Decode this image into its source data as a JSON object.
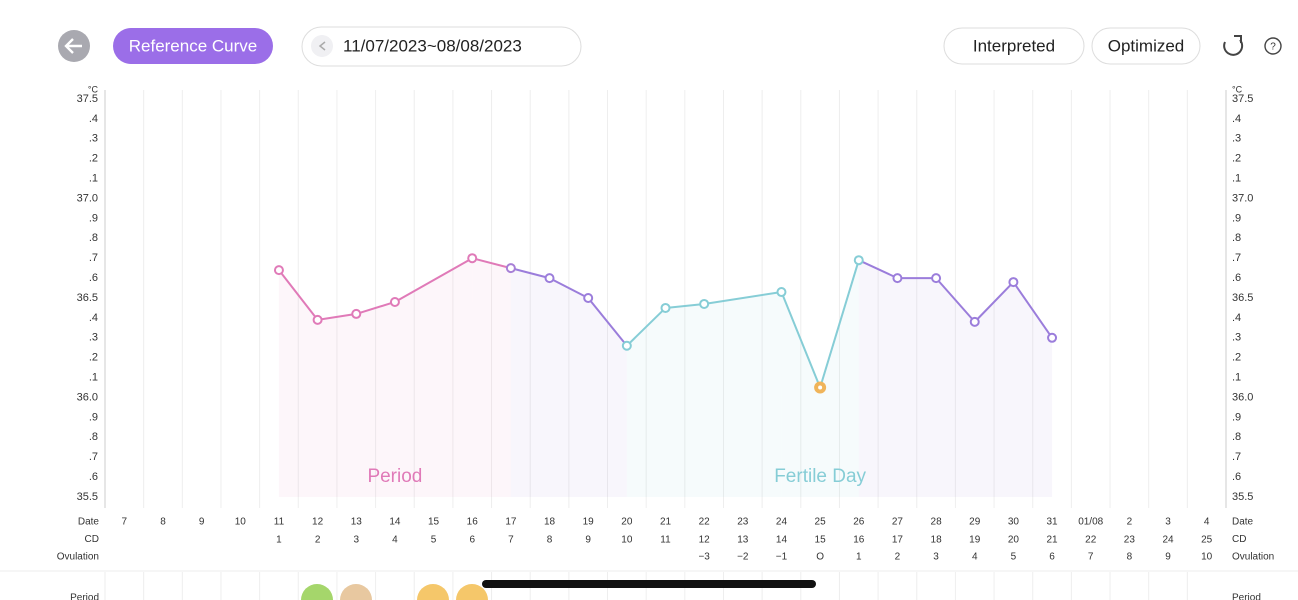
{
  "header": {
    "button": "Reference Curve",
    "date_range": "11/07/2023~08/08/2023",
    "tabs": [
      "Interpreted",
      "Optimized"
    ]
  },
  "chart_data": {
    "type": "line",
    "y_unit": "°C",
    "ylim": [
      35.5,
      37.5
    ],
    "yticks": [
      35.5,
      {
        "value": 35.6,
        "label": ".6"
      },
      {
        "value": 35.7,
        "label": ".7"
      },
      {
        "value": 35.8,
        "label": ".8"
      },
      {
        "value": 35.9,
        "label": ".9"
      },
      {
        "value": 36,
        "label": "36.0"
      },
      {
        "value": 36.1,
        "label": ".1"
      },
      {
        "value": 36.2,
        "label": ".2"
      },
      {
        "value": 36.3,
        "label": ".3"
      },
      {
        "value": 36.4,
        "label": ".4"
      },
      36.5,
      {
        "value": 36.6,
        "label": ".6"
      },
      {
        "value": 36.7,
        "label": ".7"
      },
      {
        "value": 36.8,
        "label": ".8"
      },
      {
        "value": 36.9,
        "label": ".9"
      },
      {
        "value": 37,
        "label": "37.0"
      },
      {
        "value": 37.1,
        "label": ".1"
      },
      {
        "value": 37.2,
        "label": ".2"
      },
      {
        "value": 37.3,
        "label": ".3"
      },
      {
        "value": 37.4,
        "label": ".4"
      },
      37.5
    ],
    "grid": false,
    "vertical_grid": true,
    "categories": [
      "7",
      "8",
      "9",
      "10",
      "11",
      "12",
      "13",
      "14",
      "15",
      "16",
      "17",
      "18",
      "19",
      "20",
      "21",
      "22",
      "23",
      "24",
      "25",
      "26",
      "27",
      "28",
      "29",
      "30",
      "31",
      "01/08",
      "2",
      "3",
      "4"
    ],
    "row_labels": [
      "Date",
      "CD",
      "Ovulation"
    ],
    "cd": [
      null,
      null,
      null,
      null,
      1,
      2,
      3,
      4,
      5,
      6,
      7,
      8,
      9,
      10,
      11,
      12,
      13,
      14,
      15,
      16,
      17,
      18,
      19,
      20,
      21,
      22,
      23,
      24,
      25
    ],
    "ovulation": [
      null,
      null,
      null,
      null,
      null,
      null,
      null,
      null,
      null,
      null,
      null,
      null,
      null,
      null,
      null,
      "−3",
      "−2",
      "−1",
      "O",
      "1",
      "2",
      "3",
      "4",
      "5",
      "6",
      "7",
      "8",
      "9",
      "10"
    ],
    "series": {
      "x": [
        "11",
        "12",
        "13",
        "14",
        "16",
        "17",
        "18",
        "19",
        "20",
        "21",
        "22",
        "24",
        "25",
        "26",
        "27",
        "28",
        "29",
        "30",
        "31"
      ],
      "values": [
        36.64,
        36.39,
        36.42,
        36.48,
        36.7,
        36.65,
        36.6,
        36.5,
        36.26,
        36.45,
        36.47,
        36.53,
        36.05,
        36.69,
        36.6,
        36.6,
        36.38,
        36.58,
        36.3
      ],
      "colors": [
        "#e07ab8",
        "#e07ab8",
        "#e07ab8",
        "#e07ab8",
        "#e07ab8",
        "#a77fd6",
        "#9b7ddb",
        "#9b7ddb",
        "#86cdd6",
        "#86cdd6",
        "#86cdd6",
        "#86cdd6",
        "#f0b45a",
        "#86cdd6",
        "#9b7ddb",
        "#9b7ddb",
        "#9b7ddb",
        "#9b7ddb",
        "#9b7ddb"
      ],
      "line_colors": [
        "#e07ab8",
        "#e07ab8",
        "#e07ab8",
        "#e07ab8",
        "#e07ab8",
        "#9b7ddb",
        "#9b7ddb",
        "#9b7ddb",
        "#86cdd6",
        "#86cdd6",
        "#86cdd6",
        "#86cdd6",
        "#86cdd6",
        "#9b7ddb",
        "#9b7ddb",
        "#9b7ddb",
        "#9b7ddb",
        "#9b7ddb"
      ]
    },
    "annotations": [
      {
        "text": "Period",
        "color": "#e07ab8",
        "at": "14"
      },
      {
        "text": "Fertile Day",
        "color": "#86cdd6",
        "at": "25"
      }
    ],
    "next_row": "Period"
  }
}
